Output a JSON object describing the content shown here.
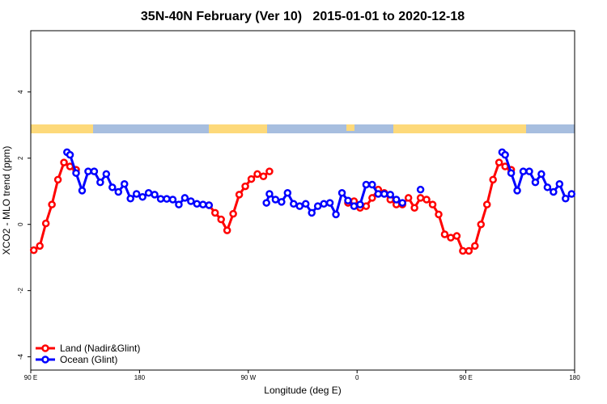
{
  "chart_data": {
    "type": "line",
    "title": "35N-40N February (Ver 10)   2015-01-01 to 2020-12-18",
    "x_label": "Longitude (deg E)",
    "y_label": "XCO2 - MLO trend (ppm)",
    "xlim": [
      90,
      540
    ],
    "ylim": [
      -4.4,
      5.85
    ],
    "xticks": [
      {
        "value": 90,
        "label": "90 E"
      },
      180,
      {
        "value": 270,
        "label": "90 W"
      },
      {
        "value": 360,
        "label": "0"
      },
      {
        "value": 450,
        "label": "90 E"
      },
      {
        "value": 540,
        "label": "180"
      }
    ],
    "yticks": [
      -4,
      -2,
      0,
      2,
      4
    ],
    "legend": "bottom-left",
    "series": [
      {
        "name": "Land (Nadir&Glint)",
        "color": "#ff0000",
        "x": [
          92.5,
          97.5,
          102.5,
          107.5,
          112.5,
          117.5,
          122.5,
          127.5,
          132.5,
          237.5,
          242.5,
          247.5,
          252.5,
          257.5,
          262.5,
          267.5,
          272.5,
          277.5,
          282.5,
          287.5,
          292.5,
          352.5,
          357.5,
          362.5,
          367.5,
          372.5,
          377.5,
          382.5,
          387.5,
          392.5,
          397.5,
          402.5,
          407.5,
          412.5,
          417.5,
          422.5,
          427.5,
          432.5,
          437.5,
          442.5,
          447.5,
          452.5,
          457.5,
          462.5,
          467.5,
          472.5,
          477.5,
          482.5,
          487.5
        ],
        "values": [
          -0.78,
          -0.65,
          0.03,
          0.6,
          1.35,
          1.87,
          1.75,
          1.65,
          null,
          0.58,
          0.35,
          0.15,
          -0.18,
          0.32,
          0.9,
          1.15,
          1.37,
          1.52,
          1.45,
          1.6,
          null,
          0.65,
          0.7,
          0.5,
          0.55,
          0.8,
          1.05,
          0.95,
          0.75,
          0.6,
          0.6,
          0.8,
          0.5,
          0.8,
          0.75,
          0.6,
          0.3,
          -0.3,
          -0.4,
          -0.35,
          -0.8,
          -0.8,
          -0.65,
          0.0,
          0.6,
          1.35,
          1.87,
          1.75,
          1.65
        ]
      },
      {
        "name": "Ocean (Glint)",
        "color": "#0000ff",
        "x": [
          120,
          122.5,
          127.5,
          132.5,
          137.5,
          142.5,
          147.5,
          152.5,
          157.5,
          162.5,
          167.5,
          172.5,
          177.5,
          182.5,
          187.5,
          192.5,
          197.5,
          202.5,
          207.5,
          212.5,
          217.5,
          222.5,
          227.5,
          232.5,
          237.5,
          240,
          285,
          287.5,
          292.5,
          297.5,
          302.5,
          307.5,
          312.5,
          317.5,
          322.5,
          327.5,
          332.5,
          337.5,
          342.5,
          347.5,
          352.5,
          357.5,
          362.5,
          367.5,
          372.5,
          377.5,
          382.5,
          387.5,
          392.5,
          397.5,
          400,
          412.5,
          415,
          480,
          482.5,
          487.5,
          492.5,
          497.5,
          502.5,
          507.5,
          512.5,
          517.5,
          522.5,
          527.5,
          532.5,
          537.5
        ],
        "values": [
          2.18,
          2.1,
          1.55,
          1.02,
          1.6,
          1.6,
          1.27,
          1.52,
          1.12,
          0.98,
          1.22,
          0.78,
          0.92,
          0.83,
          0.95,
          0.9,
          0.77,
          0.77,
          0.75,
          0.6,
          0.8,
          0.7,
          0.62,
          0.6,
          0.58,
          null,
          0.65,
          0.92,
          0.75,
          0.68,
          0.95,
          0.62,
          0.55,
          0.62,
          0.35,
          0.55,
          0.62,
          0.65,
          0.3,
          0.95,
          0.72,
          0.55,
          0.6,
          1.2,
          1.2,
          0.92,
          0.92,
          0.9,
          0.75,
          0.65,
          null,
          1.05,
          null,
          2.18,
          2.1,
          1.55,
          1.02,
          1.6,
          1.6,
          1.27,
          1.52,
          1.12,
          0.98,
          1.22,
          0.78,
          0.92
        ]
      }
    ]
  }
}
